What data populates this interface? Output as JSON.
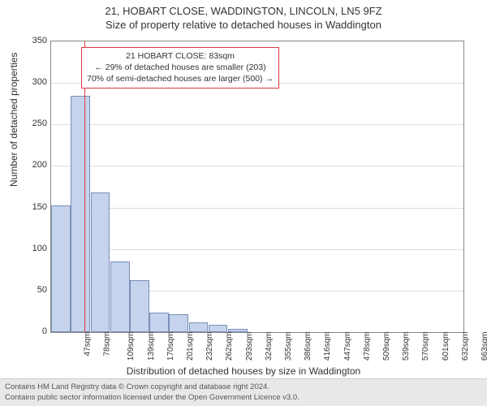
{
  "title_line1": "21, HOBART CLOSE, WADDINGTON, LINCOLN, LN5 9FZ",
  "title_line2": "Size of property relative to detached houses in Waddington",
  "chart": {
    "type": "bar",
    "ylabel": "Number of detached properties",
    "xlabel": "Distribution of detached houses by size in Waddington",
    "ylim": [
      0,
      350
    ],
    "ytick_step": 50,
    "yticks": [
      0,
      50,
      100,
      150,
      200,
      250,
      300,
      350
    ],
    "categories": [
      "47sqm",
      "78sqm",
      "109sqm",
      "139sqm",
      "170sqm",
      "201sqm",
      "232sqm",
      "262sqm",
      "293sqm",
      "324sqm",
      "355sqm",
      "386sqm",
      "416sqm",
      "447sqm",
      "478sqm",
      "509sqm",
      "539sqm",
      "570sqm",
      "601sqm",
      "632sqm",
      "663sqm"
    ],
    "values": [
      153,
      285,
      168,
      85,
      63,
      23,
      22,
      12,
      9,
      4,
      0,
      0,
      0,
      0,
      0,
      0,
      0,
      0,
      0,
      0,
      0
    ],
    "bar_color": "#c5d3ec",
    "bar_border_color": "#7a8fb8",
    "grid_color": "#dddddd",
    "axis_color": "#888888",
    "background_color": "#ffffff",
    "marker_position_index": 1.2,
    "marker_color": "#d9363e",
    "title_fontsize": 13,
    "label_fontsize": 12,
    "tick_fontsize": 11
  },
  "annotation": {
    "line1": "21 HOBART CLOSE: 83sqm",
    "line2": "← 29% of detached houses are smaller (203)",
    "line3": "70% of semi-detached houses are larger (500) →",
    "border_color": "#d9363e",
    "background": "#ffffff",
    "fontsize": 10.5
  },
  "footer": {
    "line1": "Contains HM Land Registry data © Crown copyright and database right 2024.",
    "line2": "Contains public sector information licensed under the Open Government Licence v3.0.",
    "background": "#e8e8e8",
    "fontsize": 9.5
  }
}
